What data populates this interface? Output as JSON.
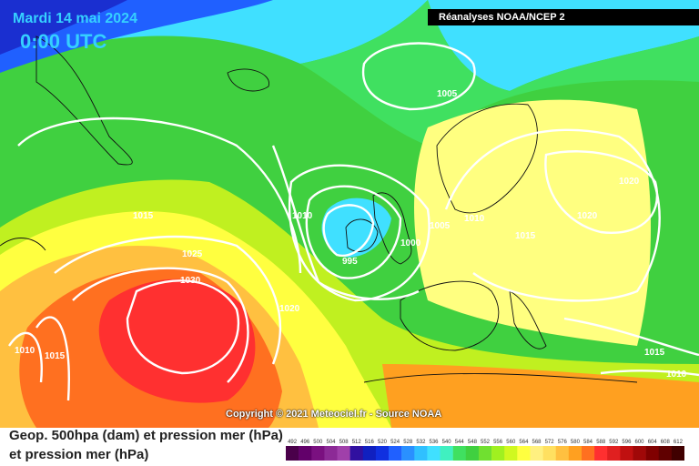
{
  "header": {
    "date": "Mardi 14 mai 2024",
    "time": "0:00 UTC",
    "source": "Réanalyses NOAA/NCEP 2"
  },
  "footer": {
    "copyright": "Copyright © 2021 Meteociel.fr - Source NOAA",
    "legend_line1": "Geop. 500hpa (dam) et pression mer (hPa)",
    "legend_line2": "et pression mer (hPa)"
  },
  "map_data": {
    "isobar_labels": [
      "1005",
      "1015",
      "1010",
      "1020",
      "1020",
      "1025",
      "1030",
      "1010",
      "1015",
      "1020",
      "995",
      "1000",
      "1005",
      "1010",
      "1015",
      "1015",
      "1010"
    ],
    "colors": {
      "low_500": "#1a2fd0",
      "blue": "#2060ff",
      "cyan": "#40e0ff",
      "green": "#40d040",
      "yellow_green": "#c0f020",
      "yellow": "#ffff40",
      "orange": "#ffa020",
      "red": "#ff3030"
    }
  },
  "scale": {
    "values": [
      "492",
      "496",
      "500",
      "504",
      "508",
      "512",
      "516",
      "520",
      "524",
      "528",
      "532",
      "536",
      "540",
      "544",
      "548",
      "552",
      "556",
      "560",
      "564",
      "568",
      "572",
      "576",
      "580",
      "584",
      "588",
      "592",
      "596",
      "600",
      "604",
      "608",
      "612"
    ],
    "colors": [
      "#4a004a",
      "#62006a",
      "#7a1080",
      "#8c2a96",
      "#a040aa",
      "#3010a0",
      "#1020c0",
      "#1030e0",
      "#2060ff",
      "#2a90ff",
      "#30c0ff",
      "#40e0ff",
      "#40f0c0",
      "#40e060",
      "#40d040",
      "#70e030",
      "#a0f020",
      "#d0f820",
      "#ffff40",
      "#fff080",
      "#ffe060",
      "#ffc040",
      "#ffa020",
      "#ff7020",
      "#ff3030",
      "#e02020",
      "#c01010",
      "#a00808",
      "#800000",
      "#600000",
      "#400000"
    ]
  }
}
